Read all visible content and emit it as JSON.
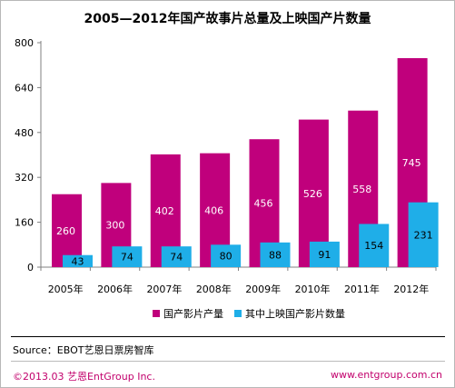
{
  "title": "2005—2012年国产故事片总量及上映国产片数量",
  "chart_data": {
    "type": "bar",
    "categories": [
      "2005年",
      "2006年",
      "2007年",
      "2008年",
      "2009年",
      "2010年",
      "2011年",
      "2012年"
    ],
    "series": [
      {
        "name": "国产影片产量",
        "values": [
          260,
          300,
          402,
          406,
          456,
          526,
          558,
          745
        ],
        "color": "#c0007c"
      },
      {
        "name": "其中上映国产影片数量",
        "values": [
          43,
          74,
          74,
          80,
          88,
          91,
          154,
          231
        ],
        "color": "#1faee8"
      }
    ],
    "yticks": [
      0,
      160,
      320,
      480,
      640,
      800
    ],
    "ylim": [
      0,
      800
    ],
    "legend_position": "bottom",
    "grid": false
  },
  "source": "Source：EBOT艺恩日票房智库",
  "footer": {
    "left": "©2013.03  艺恩EntGroup Inc.",
    "right": "www.entgroup.com.cn"
  }
}
